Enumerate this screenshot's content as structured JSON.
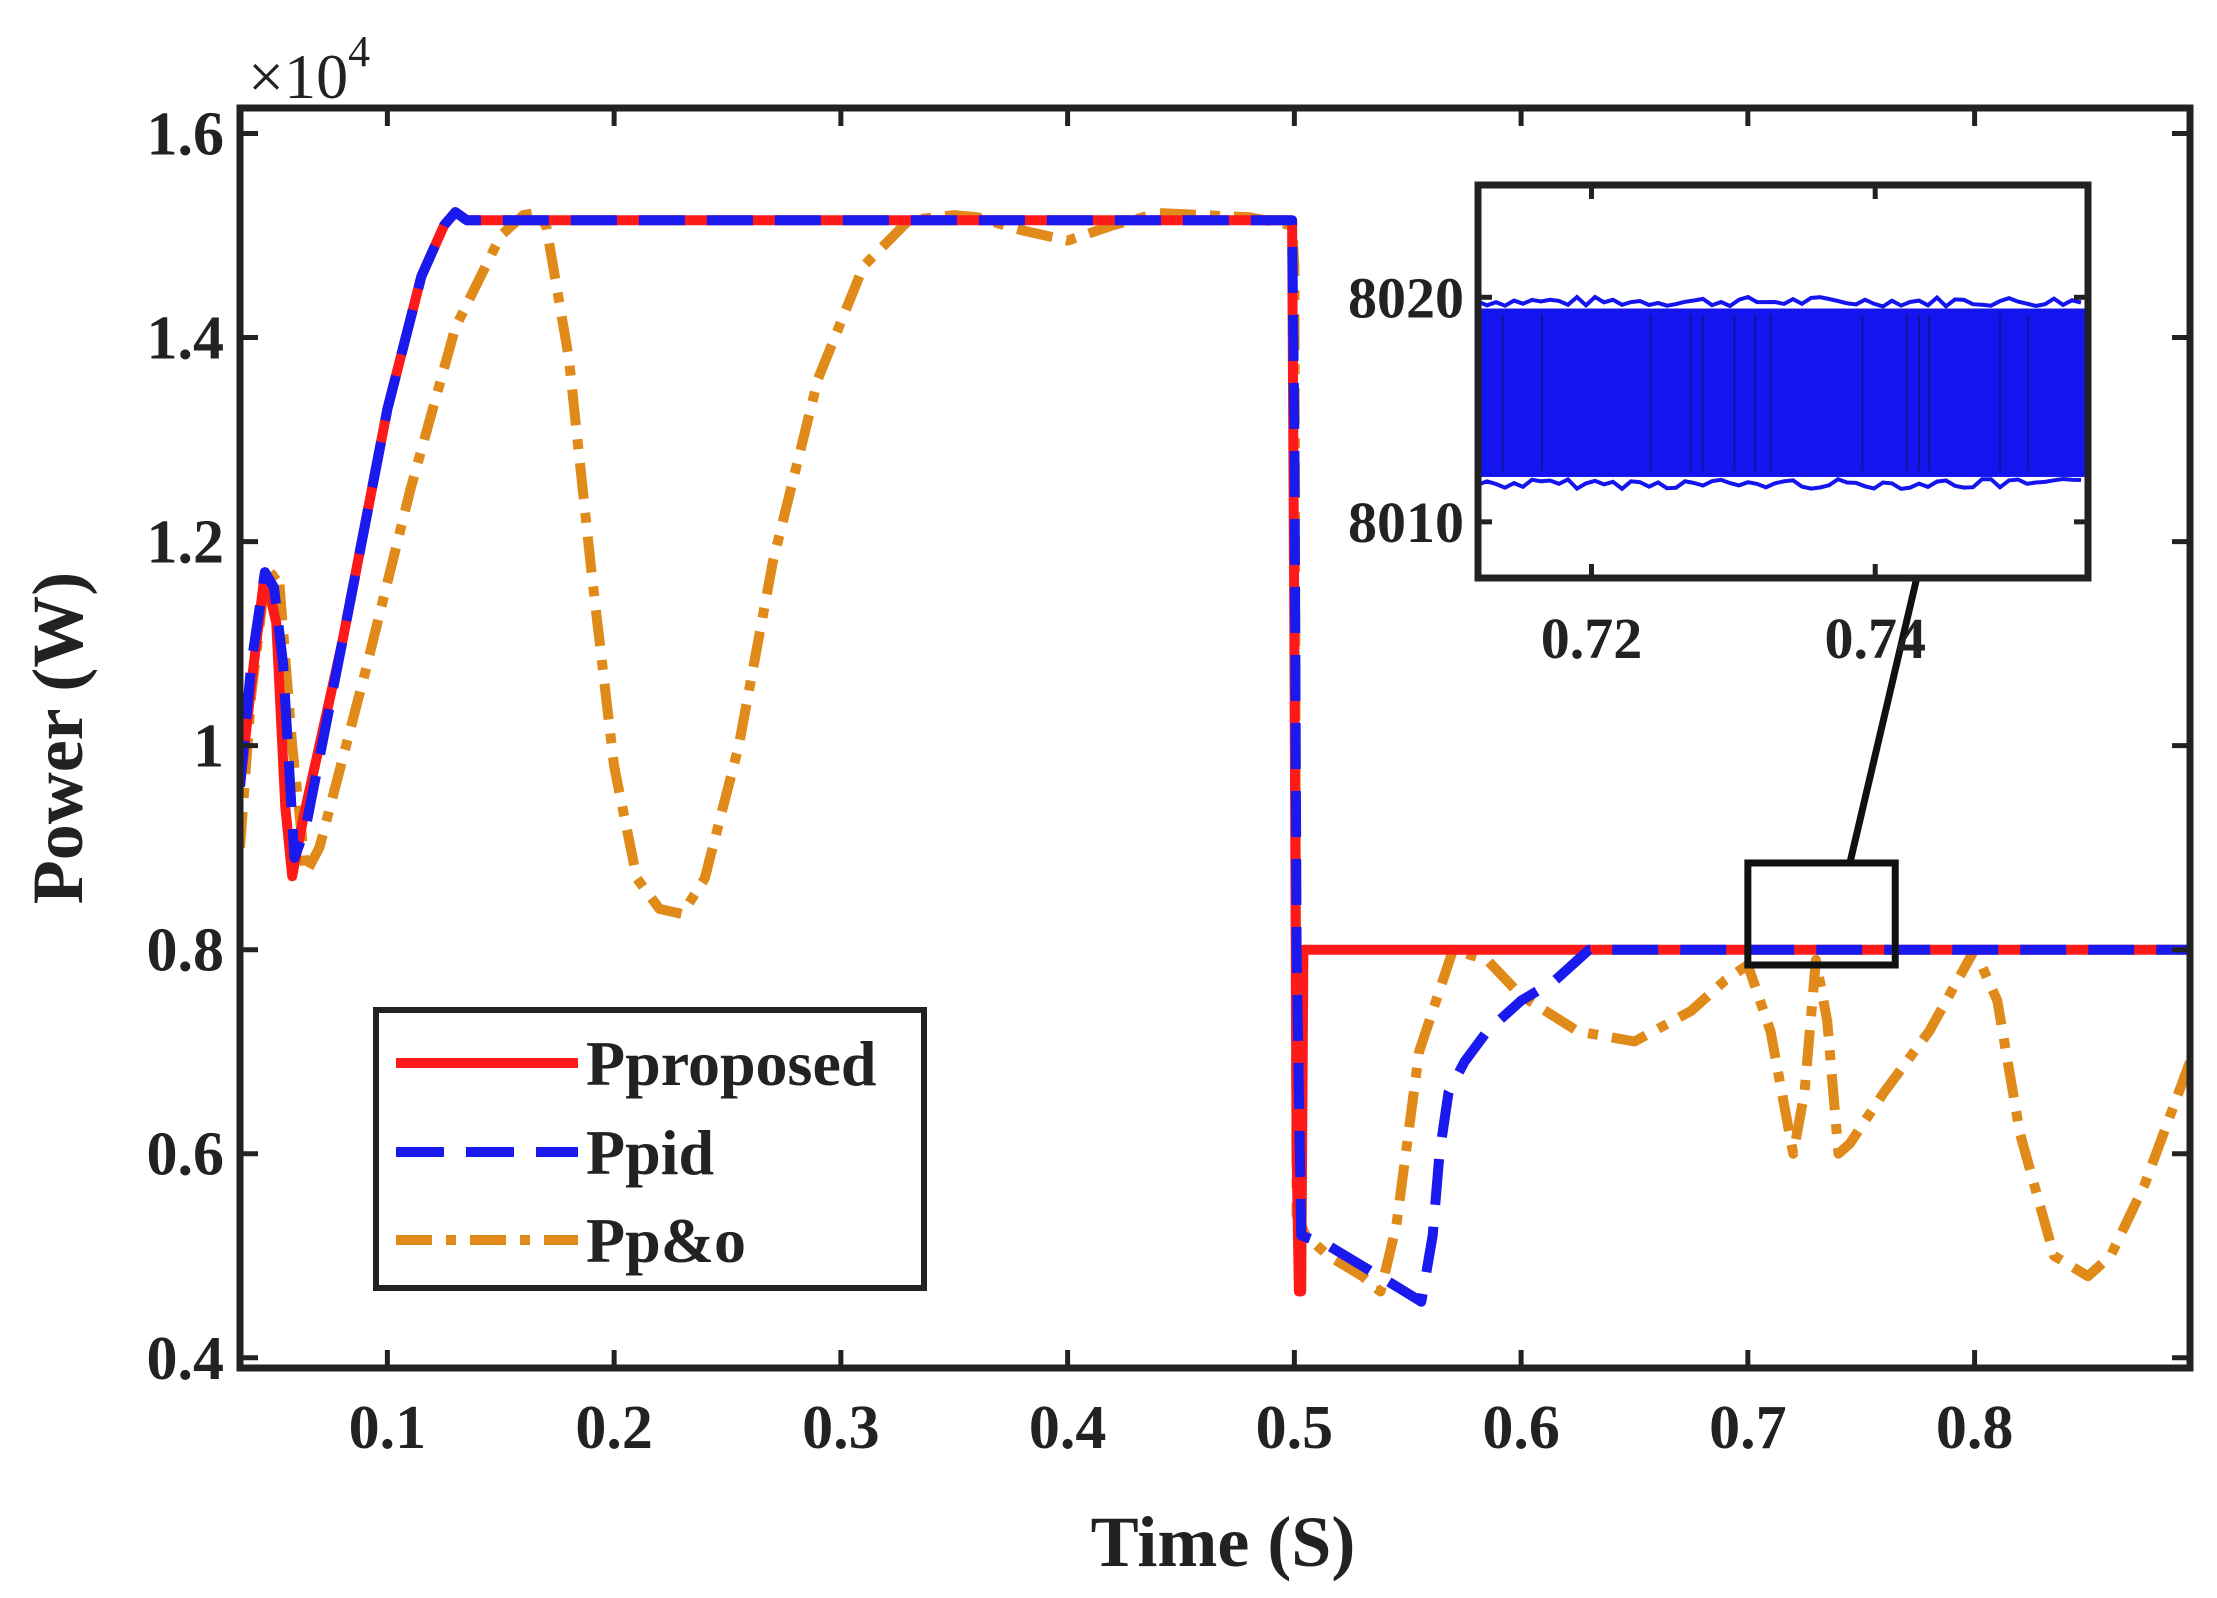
{
  "chart_data": {
    "type": "line",
    "title": "",
    "xlabel": "Time (S)",
    "ylabel": "Power (W)",
    "y_multiplier_label": "×10",
    "y_multiplier_exponent": "4",
    "xlim": [
      0.035,
      0.895
    ],
    "ylim": [
      0.39,
      1.625
    ],
    "xticks": [
      0.1,
      0.2,
      0.3,
      0.4,
      0.5,
      0.6,
      0.7,
      0.8
    ],
    "xtick_labels": [
      "0.1",
      "0.2",
      "0.3",
      "0.4",
      "0.5",
      "0.6",
      "0.7",
      "0.8"
    ],
    "yticks": [
      0.4,
      0.6,
      0.8,
      1.0,
      1.2,
      1.4,
      1.6
    ],
    "ytick_labels": [
      "0.4",
      "0.6",
      "0.8",
      "1",
      "1.2",
      "1.4",
      "1.6"
    ],
    "legend_position": "bottom-left",
    "series": [
      {
        "name": "Pproposed",
        "color": "#ff1a1a",
        "style": "solid",
        "x": [
          0.035,
          0.04,
          0.046,
          0.051,
          0.055,
          0.058,
          0.063,
          0.08,
          0.1,
          0.115,
          0.125,
          0.13,
          0.135,
          0.2,
          0.3,
          0.4,
          0.499,
          0.5,
          0.501,
          0.502,
          0.503,
          0.504,
          0.6,
          0.7,
          0.8,
          0.895
        ],
        "y": [
          0.96,
          1.06,
          1.17,
          1.12,
          0.94,
          0.872,
          0.93,
          1.1,
          1.33,
          1.46,
          1.51,
          1.523,
          1.515,
          1.515,
          1.515,
          1.515,
          1.515,
          1.1,
          0.6,
          0.465,
          0.465,
          0.8,
          0.8,
          0.8,
          0.8,
          0.8
        ]
      },
      {
        "name": "Ppid",
        "color": "#1a1aee",
        "style": "dashed",
        "x": [
          0.035,
          0.04,
          0.046,
          0.05,
          0.054,
          0.059,
          0.064,
          0.08,
          0.1,
          0.115,
          0.125,
          0.13,
          0.135,
          0.2,
          0.3,
          0.4,
          0.499,
          0.5,
          0.501,
          0.503,
          0.515,
          0.53,
          0.545,
          0.556,
          0.561,
          0.564,
          0.568,
          0.575,
          0.585,
          0.6,
          0.615,
          0.625,
          0.63,
          0.7,
          0.8,
          0.895
        ],
        "y": [
          0.96,
          1.08,
          1.17,
          1.155,
          1.08,
          0.89,
          0.92,
          1.1,
          1.33,
          1.46,
          1.51,
          1.523,
          1.515,
          1.515,
          1.515,
          1.515,
          1.515,
          1.3,
          0.8,
          0.52,
          0.51,
          0.49,
          0.47,
          0.455,
          0.52,
          0.6,
          0.66,
          0.69,
          0.72,
          0.75,
          0.77,
          0.79,
          0.8,
          0.8,
          0.8,
          0.8
        ]
      },
      {
        "name": "Pp&o",
        "color": "#e08a1a",
        "style": "dashdot",
        "x": [
          0.035,
          0.04,
          0.046,
          0.052,
          0.058,
          0.064,
          0.07,
          0.09,
          0.11,
          0.13,
          0.15,
          0.16,
          0.165,
          0.17,
          0.18,
          0.19,
          0.2,
          0.21,
          0.22,
          0.23,
          0.24,
          0.255,
          0.27,
          0.29,
          0.31,
          0.33,
          0.35,
          0.36,
          0.38,
          0.4,
          0.42,
          0.44,
          0.46,
          0.48,
          0.499,
          0.5,
          0.501,
          0.505,
          0.515,
          0.53,
          0.538,
          0.545,
          0.555,
          0.57,
          0.585,
          0.6,
          0.625,
          0.65,
          0.675,
          0.69,
          0.7,
          0.71,
          0.72,
          0.725,
          0.73,
          0.735,
          0.74,
          0.745,
          0.76,
          0.78,
          0.8,
          0.81,
          0.82,
          0.835,
          0.85,
          0.86,
          0.875,
          0.895
        ],
        "y": [
          0.9,
          1.05,
          1.16,
          1.17,
          1.0,
          0.875,
          0.9,
          1.07,
          1.25,
          1.41,
          1.5,
          1.52,
          1.522,
          1.51,
          1.38,
          1.17,
          0.98,
          0.87,
          0.84,
          0.835,
          0.87,
          1.0,
          1.18,
          1.36,
          1.47,
          1.515,
          1.52,
          1.518,
          1.505,
          1.495,
          1.51,
          1.522,
          1.52,
          1.518,
          1.51,
          1.47,
          0.54,
          0.52,
          0.5,
          0.48,
          0.465,
          0.53,
          0.7,
          0.8,
          0.79,
          0.755,
          0.72,
          0.71,
          0.74,
          0.77,
          0.785,
          0.72,
          0.6,
          0.66,
          0.79,
          0.73,
          0.6,
          0.61,
          0.66,
          0.72,
          0.8,
          0.75,
          0.62,
          0.5,
          0.48,
          0.5,
          0.57,
          0.69
        ]
      }
    ],
    "annotation": {
      "zoom_box_x": [
        0.7,
        0.765
      ],
      "zoom_box_y": [
        0.785,
        0.885
      ],
      "arrow_from": [
        0.745,
        0.885
      ],
      "arrow_to": [
        0.792,
        1.33
      ]
    },
    "inset": {
      "series": "Ppid",
      "xlim": [
        0.712,
        0.755
      ],
      "ylim": [
        8007.5,
        8025
      ],
      "xticks": [
        0.72,
        0.74
      ],
      "xtick_labels": [
        "0.72",
        "0.74"
      ],
      "yticks": [
        8010,
        8020
      ],
      "ytick_labels": [
        "8010",
        "8020"
      ],
      "signal_low": 8012,
      "signal_high": 8019.5
    }
  },
  "legend": {
    "items": [
      {
        "label": "Pproposed"
      },
      {
        "label": "Ppid"
      },
      {
        "label": "Pp&o"
      }
    ]
  }
}
